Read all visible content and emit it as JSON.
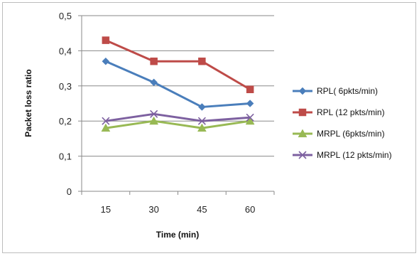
{
  "chart_data": {
    "type": "line",
    "title": "",
    "xlabel": "Time (min)",
    "ylabel": "Packet loss ratio",
    "categories": [
      "15",
      "30",
      "45",
      "60"
    ],
    "ylim": [
      0,
      0.5
    ],
    "yticks": [
      "0",
      "0,1",
      "0,2",
      "0,3",
      "0,4",
      "0,5"
    ],
    "ytick_values": [
      0,
      0.1,
      0.2,
      0.3,
      0.4,
      0.5
    ],
    "grid": "horizontal",
    "legend_position": "right",
    "series": [
      {
        "name": "RPL( 6pkts/min)",
        "values": [
          0.37,
          0.31,
          0.24,
          0.25
        ],
        "color": "#4a7ebb",
        "marker": "diamond"
      },
      {
        "name": "RPL (12 pkts/min)",
        "values": [
          0.43,
          0.37,
          0.37,
          0.29
        ],
        "color": "#be4b48",
        "marker": "square"
      },
      {
        "name": "MRPL (6pkts/min)",
        "values": [
          0.18,
          0.2,
          0.18,
          0.2
        ],
        "color": "#98b954",
        "marker": "triangle"
      },
      {
        "name": "MRPL (12 pkts/min)",
        "values": [
          0.2,
          0.22,
          0.2,
          0.21
        ],
        "color": "#7d60a0",
        "marker": "x"
      }
    ]
  }
}
